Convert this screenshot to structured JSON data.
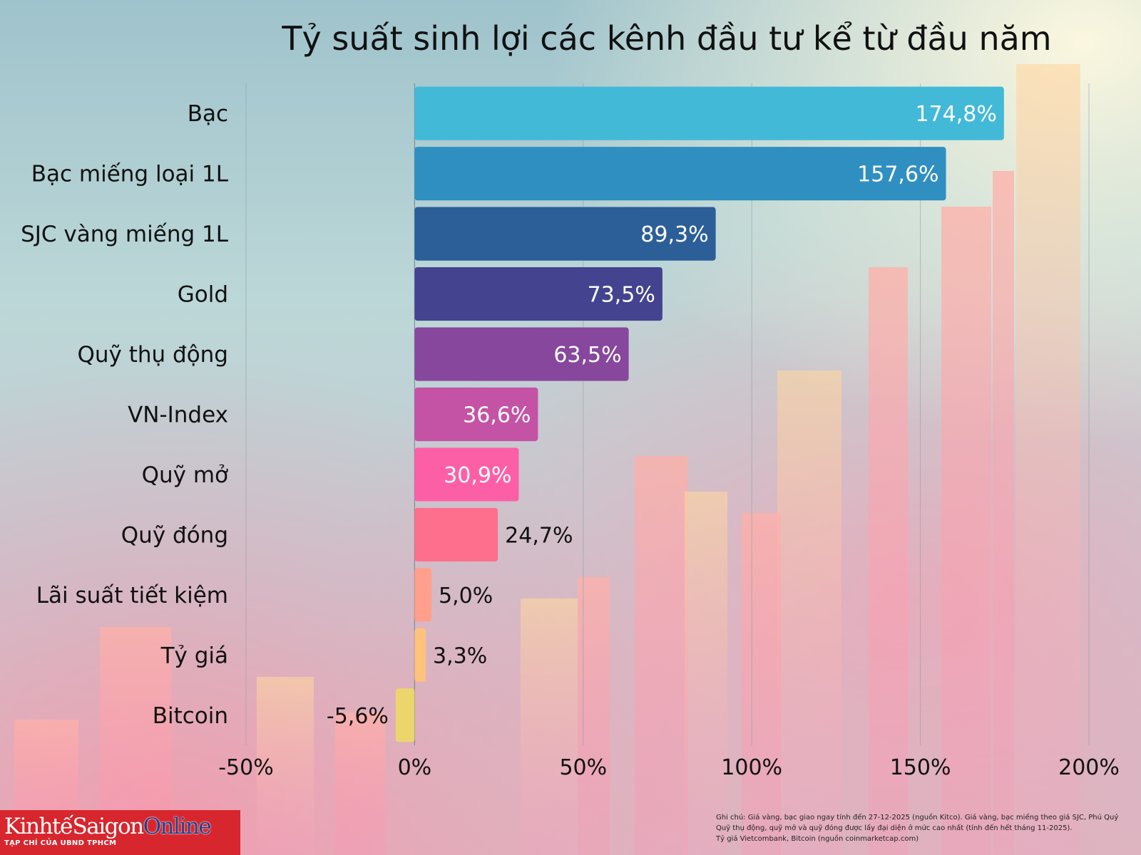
{
  "chart_data": {
    "type": "bar",
    "orientation": "horizontal",
    "title": "Tỷ suất sinh lợi các kênh đầu tư kể từ đầu năm",
    "xlabel": "",
    "ylabel": "",
    "categories": [
      "Bạc",
      "Bạc miếng loại 1L",
      "SJC vàng miếng 1L",
      "Gold",
      "Quỹ thụ động",
      "VN-Index",
      "Quỹ mở",
      "Quỹ đóng",
      "Lãi suất tiết kiệm",
      "Tỷ giá",
      "Bitcoin"
    ],
    "values": [
      174.8,
      157.6,
      89.3,
      73.5,
      63.5,
      36.6,
      30.9,
      24.7,
      5.0,
      3.3,
      -5.6
    ],
    "value_labels": [
      "174,8%",
      "157,6%",
      "89,3%",
      "73,5%",
      "63,5%",
      "36,6%",
      "30,9%",
      "24,7%",
      "5,0%",
      "3,3%",
      "-5,6%"
    ],
    "colors": [
      "#43b9d8",
      "#2f8fc0",
      "#2c5f98",
      "#43438f",
      "#87479d",
      "#c453a6",
      "#fd5fa6",
      "#fe6f8d",
      "#ff9f8c",
      "#ffc27d",
      "#ecd66c"
    ],
    "xlim": [
      -50,
      200
    ],
    "xticks": [
      -50,
      0,
      50,
      100,
      150,
      200
    ],
    "xtick_labels": [
      "-50%",
      "0%",
      "50%",
      "100%",
      "150%",
      "200%"
    ],
    "grid": "vertical",
    "legend": "none"
  },
  "logo": {
    "brand_part1": "KinhtếSaigon",
    "brand_part2": "Online",
    "tagline": "TẠP CHÍ CỦA UBND TPHCM"
  },
  "note": {
    "line1": "Ghi chú: Giá vàng, bạc giao ngay tính đến 27-12-2025 (nguồn Kitco). Giá vàng, bạc miếng theo giá SJC, Phú Quý",
    "line2": "Quỹ thụ động, quỹ mở và quỹ đóng được lấy đại diện ở mức cao nhất (tính đến hết tháng 11-2025).",
    "line3": "Tỷ giá Vietcombank, Bitcoin (nguồn coinmarketcap.com)"
  }
}
